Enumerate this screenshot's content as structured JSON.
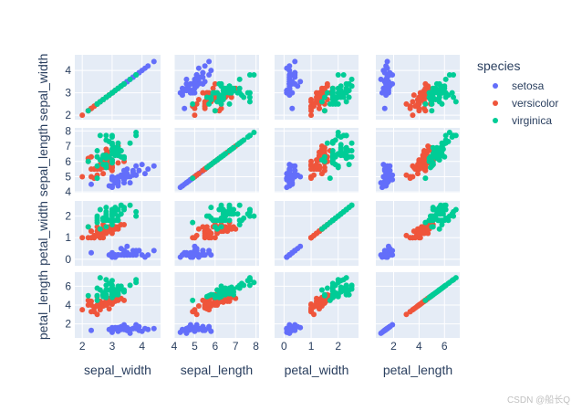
{
  "chart_data": {
    "type": "scatter",
    "kind": "scatter_matrix",
    "dimensions": [
      "sepal_width",
      "sepal_length",
      "petal_width",
      "petal_length"
    ],
    "axis_ticks": {
      "sepal_width": [
        2,
        3,
        4
      ],
      "sepal_length": [
        4,
        5,
        6,
        7,
        8
      ],
      "petal_width": [
        0,
        1,
        2
      ],
      "petal_length": [
        2,
        4,
        6
      ]
    },
    "x_tick_labels": {
      "sepal_width": [
        2,
        3,
        4
      ],
      "sepal_length": [
        4,
        5,
        6,
        7,
        8
      ],
      "petal_width": [
        0,
        1,
        2
      ],
      "petal_length": [
        2,
        4,
        6
      ]
    },
    "axis_ranges": {
      "sepal_width": [
        1.75,
        4.62
      ],
      "sepal_length": [
        4.0,
        8.15
      ],
      "petal_width": [
        -0.35,
        2.75
      ],
      "petal_length": [
        0.6,
        7.2
      ]
    },
    "y_axis_ranges": {
      "sepal_width": [
        1.8,
        4.7
      ],
      "sepal_length": [
        3.95,
        8.2
      ],
      "petal_width": [
        -0.3,
        2.7
      ],
      "petal_length": [
        0.5,
        7.5
      ]
    },
    "legend": {
      "title": "species",
      "position": "top-right"
    },
    "grid": true,
    "series": [
      {
        "name": "setosa",
        "color": "#636efa",
        "points": [
          [
            3.5,
            5.1,
            0.2,
            1.4
          ],
          [
            3.0,
            4.9,
            0.2,
            1.4
          ],
          [
            3.2,
            4.7,
            0.2,
            1.3
          ],
          [
            3.1,
            4.6,
            0.2,
            1.5
          ],
          [
            3.6,
            5.0,
            0.2,
            1.4
          ],
          [
            3.9,
            5.4,
            0.4,
            1.7
          ],
          [
            3.4,
            4.6,
            0.3,
            1.4
          ],
          [
            3.4,
            5.0,
            0.2,
            1.5
          ],
          [
            2.9,
            4.4,
            0.2,
            1.4
          ],
          [
            3.1,
            4.9,
            0.1,
            1.5
          ],
          [
            3.7,
            5.4,
            0.2,
            1.5
          ],
          [
            3.4,
            4.8,
            0.2,
            1.6
          ],
          [
            3.0,
            4.8,
            0.1,
            1.4
          ],
          [
            3.0,
            4.3,
            0.1,
            1.1
          ],
          [
            4.0,
            5.8,
            0.2,
            1.2
          ],
          [
            4.4,
            5.7,
            0.4,
            1.5
          ],
          [
            3.9,
            5.4,
            0.4,
            1.3
          ],
          [
            3.5,
            5.1,
            0.3,
            1.4
          ],
          [
            3.8,
            5.7,
            0.3,
            1.7
          ],
          [
            3.8,
            5.1,
            0.3,
            1.5
          ],
          [
            3.4,
            5.4,
            0.2,
            1.7
          ],
          [
            3.7,
            5.1,
            0.4,
            1.5
          ],
          [
            3.6,
            4.6,
            0.2,
            1.0
          ],
          [
            3.3,
            5.1,
            0.5,
            1.7
          ],
          [
            3.4,
            4.8,
            0.2,
            1.9
          ],
          [
            3.0,
            5.0,
            0.2,
            1.6
          ],
          [
            3.4,
            5.0,
            0.4,
            1.6
          ],
          [
            3.5,
            5.2,
            0.2,
            1.5
          ],
          [
            3.4,
            5.2,
            0.2,
            1.4
          ],
          [
            3.2,
            4.7,
            0.2,
            1.6
          ],
          [
            3.1,
            4.8,
            0.2,
            1.6
          ],
          [
            3.4,
            5.4,
            0.4,
            1.5
          ],
          [
            4.1,
            5.2,
            0.1,
            1.5
          ],
          [
            4.2,
            5.5,
            0.2,
            1.4
          ],
          [
            3.1,
            4.9,
            0.1,
            1.5
          ],
          [
            3.2,
            5.0,
            0.2,
            1.2
          ],
          [
            3.5,
            5.5,
            0.2,
            1.3
          ],
          [
            3.1,
            4.9,
            0.1,
            1.5
          ],
          [
            3.0,
            4.4,
            0.2,
            1.3
          ],
          [
            3.4,
            5.1,
            0.2,
            1.5
          ],
          [
            3.5,
            5.0,
            0.3,
            1.3
          ],
          [
            2.3,
            4.5,
            0.3,
            1.3
          ],
          [
            3.2,
            4.4,
            0.2,
            1.3
          ],
          [
            3.5,
            5.0,
            0.6,
            1.6
          ],
          [
            3.8,
            5.1,
            0.4,
            1.9
          ],
          [
            3.0,
            4.8,
            0.3,
            1.4
          ],
          [
            3.8,
            5.1,
            0.2,
            1.6
          ],
          [
            3.2,
            4.6,
            0.2,
            1.4
          ],
          [
            3.7,
            5.3,
            0.2,
            1.5
          ],
          [
            3.3,
            5.0,
            0.2,
            1.4
          ]
        ]
      },
      {
        "name": "versicolor",
        "color": "#ef553b",
        "points": [
          [
            3.2,
            7.0,
            1.4,
            4.7
          ],
          [
            3.2,
            6.4,
            1.5,
            4.5
          ],
          [
            3.1,
            6.9,
            1.5,
            4.9
          ],
          [
            2.3,
            5.5,
            1.3,
            4.0
          ],
          [
            2.8,
            6.5,
            1.5,
            4.6
          ],
          [
            2.8,
            5.7,
            1.3,
            4.5
          ],
          [
            3.3,
            6.3,
            1.6,
            4.7
          ],
          [
            2.4,
            4.9,
            1.0,
            3.3
          ],
          [
            2.9,
            6.6,
            1.3,
            4.6
          ],
          [
            2.7,
            5.2,
            1.4,
            3.9
          ],
          [
            2.0,
            5.0,
            1.0,
            3.5
          ],
          [
            3.0,
            5.9,
            1.5,
            4.2
          ],
          [
            2.2,
            6.0,
            1.0,
            4.0
          ],
          [
            2.9,
            6.1,
            1.4,
            4.7
          ],
          [
            2.9,
            5.6,
            1.3,
            3.6
          ],
          [
            3.1,
            6.7,
            1.4,
            4.4
          ],
          [
            3.0,
            5.6,
            1.5,
            4.5
          ],
          [
            2.7,
            5.8,
            1.0,
            4.1
          ],
          [
            2.2,
            6.2,
            1.5,
            4.5
          ],
          [
            2.5,
            5.6,
            1.1,
            3.9
          ],
          [
            3.2,
            5.9,
            1.8,
            4.8
          ],
          [
            2.8,
            6.1,
            1.3,
            4.0
          ],
          [
            2.5,
            6.3,
            1.5,
            4.9
          ],
          [
            2.8,
            6.1,
            1.2,
            4.7
          ],
          [
            2.9,
            6.4,
            1.3,
            4.3
          ],
          [
            3.0,
            6.6,
            1.4,
            4.4
          ],
          [
            2.8,
            6.8,
            1.4,
            4.8
          ],
          [
            3.0,
            6.7,
            1.7,
            5.0
          ],
          [
            2.9,
            6.0,
            1.5,
            4.5
          ],
          [
            2.6,
            5.7,
            1.0,
            3.5
          ],
          [
            2.4,
            5.5,
            1.1,
            3.8
          ],
          [
            2.4,
            5.5,
            1.0,
            3.7
          ],
          [
            2.7,
            5.8,
            1.2,
            3.9
          ],
          [
            2.7,
            6.0,
            1.6,
            5.1
          ],
          [
            3.0,
            5.4,
            1.5,
            4.5
          ],
          [
            3.4,
            6.0,
            1.6,
            4.5
          ],
          [
            3.1,
            6.7,
            1.5,
            4.7
          ],
          [
            2.3,
            6.3,
            1.3,
            4.4
          ],
          [
            3.0,
            5.6,
            1.3,
            4.1
          ],
          [
            2.5,
            5.5,
            1.3,
            4.0
          ],
          [
            2.6,
            5.5,
            1.2,
            4.4
          ],
          [
            3.0,
            6.1,
            1.4,
            4.6
          ],
          [
            2.6,
            5.8,
            1.2,
            4.0
          ],
          [
            2.3,
            5.0,
            1.0,
            3.3
          ],
          [
            2.7,
            5.6,
            1.3,
            4.2
          ],
          [
            3.0,
            5.7,
            1.2,
            4.2
          ],
          [
            2.9,
            5.7,
            1.3,
            4.2
          ],
          [
            2.9,
            6.2,
            1.3,
            4.3
          ],
          [
            2.5,
            5.1,
            1.1,
            3.0
          ],
          [
            2.8,
            5.7,
            1.3,
            4.1
          ]
        ]
      },
      {
        "name": "virginica",
        "color": "#00cc96",
        "points": [
          [
            3.3,
            6.3,
            2.5,
            6.0
          ],
          [
            2.7,
            5.8,
            1.9,
            5.1
          ],
          [
            3.0,
            7.1,
            2.1,
            5.9
          ],
          [
            2.9,
            6.3,
            1.8,
            5.6
          ],
          [
            3.0,
            6.5,
            2.2,
            5.8
          ],
          [
            3.0,
            7.6,
            2.1,
            6.6
          ],
          [
            2.5,
            4.9,
            1.7,
            4.5
          ],
          [
            2.9,
            7.3,
            1.8,
            6.3
          ],
          [
            2.5,
            6.7,
            1.8,
            5.8
          ],
          [
            3.6,
            7.2,
            2.5,
            6.1
          ],
          [
            3.2,
            6.5,
            2.0,
            5.1
          ],
          [
            2.7,
            6.4,
            1.9,
            5.3
          ],
          [
            3.0,
            6.8,
            2.1,
            5.5
          ],
          [
            2.5,
            5.7,
            2.0,
            5.0
          ],
          [
            2.8,
            5.8,
            2.4,
            5.1
          ],
          [
            3.2,
            6.4,
            2.3,
            5.3
          ],
          [
            3.0,
            6.5,
            1.8,
            5.5
          ],
          [
            3.8,
            7.7,
            2.2,
            6.7
          ],
          [
            2.6,
            7.7,
            2.3,
            6.9
          ],
          [
            2.2,
            6.0,
            1.5,
            5.0
          ],
          [
            3.2,
            6.9,
            2.3,
            5.7
          ],
          [
            2.8,
            5.6,
            2.0,
            4.9
          ],
          [
            2.8,
            7.7,
            2.0,
            6.7
          ],
          [
            2.7,
            6.3,
            1.8,
            4.9
          ],
          [
            3.3,
            6.7,
            2.1,
            5.7
          ],
          [
            3.2,
            7.2,
            1.8,
            6.0
          ],
          [
            2.8,
            6.2,
            1.8,
            4.8
          ],
          [
            3.0,
            6.1,
            1.8,
            4.9
          ],
          [
            2.8,
            6.4,
            2.1,
            5.6
          ],
          [
            3.0,
            7.2,
            1.6,
            5.8
          ],
          [
            2.8,
            7.4,
            1.9,
            6.1
          ],
          [
            3.8,
            7.9,
            2.0,
            6.4
          ],
          [
            2.8,
            6.4,
            2.2,
            5.6
          ],
          [
            2.8,
            6.3,
            1.5,
            5.1
          ],
          [
            2.6,
            6.1,
            1.4,
            5.6
          ],
          [
            3.0,
            7.7,
            2.3,
            6.1
          ],
          [
            3.4,
            6.3,
            2.4,
            5.6
          ],
          [
            3.1,
            6.4,
            1.8,
            5.5
          ],
          [
            3.0,
            6.0,
            1.8,
            4.8
          ],
          [
            3.1,
            6.9,
            2.1,
            5.4
          ],
          [
            3.1,
            6.7,
            2.4,
            5.6
          ],
          [
            3.1,
            6.9,
            2.3,
            5.1
          ],
          [
            2.7,
            5.8,
            1.9,
            5.1
          ],
          [
            3.2,
            6.8,
            2.3,
            5.9
          ],
          [
            3.3,
            6.7,
            2.5,
            5.7
          ],
          [
            3.0,
            6.7,
            2.3,
            5.2
          ],
          [
            2.5,
            6.3,
            1.9,
            5.0
          ],
          [
            3.0,
            6.5,
            2.0,
            5.2
          ],
          [
            3.4,
            6.2,
            2.3,
            5.4
          ],
          [
            3.0,
            5.9,
            1.8,
            5.1
          ]
        ]
      }
    ]
  },
  "watermark": "CSDN @船长Q"
}
